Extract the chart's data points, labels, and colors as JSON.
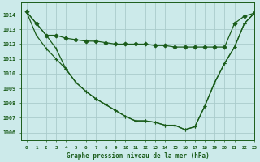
{
  "title": "Graphe pression niveau de la mer (hPa)",
  "background_color": "#cceaea",
  "grid_color": "#aacccc",
  "line_color": "#1a5c1a",
  "xlim": [
    -0.5,
    23
  ],
  "ylim": [
    1005.5,
    1014.8
  ],
  "yticks": [
    1006,
    1007,
    1008,
    1009,
    1010,
    1011,
    1012,
    1013,
    1014
  ],
  "xticks": [
    0,
    1,
    2,
    3,
    4,
    5,
    6,
    7,
    8,
    9,
    10,
    11,
    12,
    13,
    14,
    15,
    16,
    17,
    18,
    19,
    20,
    21,
    22,
    23
  ],
  "series": [
    {
      "y": [
        1014.2,
        1013.4,
        1012.6,
        1012.6,
        1012.4,
        1012.3,
        1012.2,
        1012.2,
        1012.1,
        1012.0,
        1012.0,
        1012.0,
        1012.0,
        1011.9,
        1011.9,
        1011.8,
        1011.8,
        1011.8,
        1011.8,
        1011.8,
        1011.8,
        1013.4,
        1013.9,
        1014.1
      ],
      "marker": "D",
      "markersize": 2.5,
      "linewidth": 0.9
    },
    {
      "y": [
        1014.2,
        1013.4,
        1012.6,
        1011.7,
        1010.3,
        1009.4,
        1008.8,
        1008.3,
        1007.9,
        1007.5,
        1007.1,
        1006.8,
        1006.8,
        1006.7,
        1006.5,
        1006.5,
        1006.2,
        1006.4,
        1007.8,
        1009.4,
        1010.7,
        1011.8,
        1013.4,
        1014.1
      ],
      "marker": "+",
      "markersize": 3.5,
      "linewidth": 0.9
    },
    {
      "y": [
        1014.2,
        1012.6,
        1011.7,
        1011.0,
        1010.3,
        1009.4,
        1008.8,
        1008.3,
        1007.9,
        1007.5,
        1007.1,
        1006.8,
        1006.8,
        1006.7,
        1006.5,
        1006.5,
        1006.2,
        1006.4,
        1007.8,
        1009.4,
        1010.7,
        1011.8,
        1013.4,
        1014.1
      ],
      "marker": "+",
      "markersize": 3.5,
      "linewidth": 0.9
    }
  ]
}
